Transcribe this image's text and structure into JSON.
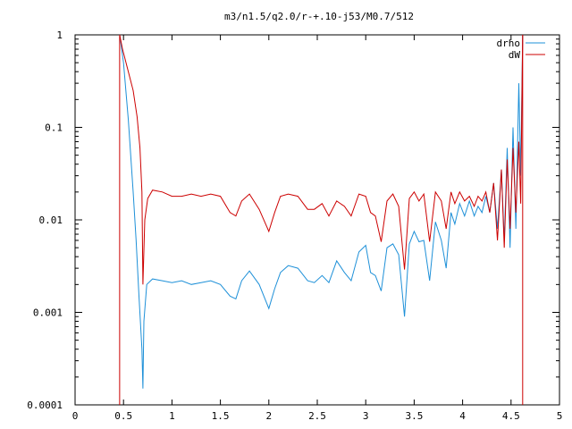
{
  "chart_data": {
    "type": "line",
    "title": "m3/n1.5/q2.0/r-+.10-j53/M0.7/512",
    "xlabel": "",
    "ylabel": "",
    "xlim": [
      0,
      5
    ],
    "ylim": [
      0.0001,
      1
    ],
    "yscale": "log",
    "grid": false,
    "legend_position": "top-right",
    "x_ticks": [
      0,
      0.5,
      1,
      1.5,
      2,
      2.5,
      3,
      3.5,
      4,
      4.5,
      5
    ],
    "x_tick_labels": [
      "0",
      "0.5",
      "1",
      "1.5",
      "2",
      "2.5",
      "3",
      "3.5",
      "4",
      "4.5",
      "5"
    ],
    "y_ticks": [
      0.0001,
      0.001,
      0.01,
      0.1,
      1
    ],
    "y_tick_labels": [
      "0.0001",
      "0.001",
      "0.01",
      "0.1",
      "1"
    ],
    "series": [
      {
        "name": "drho",
        "color": "#1e90d8",
        "x": [
          0.46,
          0.5,
          0.55,
          0.6,
          0.63,
          0.66,
          0.69,
          0.7,
          0.71,
          0.74,
          0.8,
          0.9,
          1.0,
          1.1,
          1.2,
          1.3,
          1.4,
          1.5,
          1.6,
          1.66,
          1.72,
          1.8,
          1.9,
          2.0,
          2.06,
          2.12,
          2.2,
          2.3,
          2.4,
          2.47,
          2.55,
          2.62,
          2.7,
          2.78,
          2.85,
          2.93,
          3.0,
          3.05,
          3.1,
          3.16,
          3.22,
          3.28,
          3.34,
          3.4,
          3.45,
          3.5,
          3.55,
          3.6,
          3.66,
          3.72,
          3.78,
          3.83,
          3.88,
          3.92,
          3.97,
          4.02,
          4.07,
          4.12,
          4.16,
          4.2,
          4.24,
          4.28,
          4.32,
          4.36,
          4.4,
          4.43,
          4.46,
          4.49,
          4.52,
          4.55,
          4.58,
          4.6,
          4.62
        ],
        "y": [
          1,
          0.5,
          0.12,
          0.02,
          0.006,
          0.0015,
          0.0004,
          0.00015,
          0.0008,
          0.002,
          0.0023,
          0.0022,
          0.0021,
          0.0022,
          0.002,
          0.0021,
          0.0022,
          0.002,
          0.0015,
          0.0014,
          0.0022,
          0.0028,
          0.002,
          0.0011,
          0.0018,
          0.0027,
          0.0032,
          0.003,
          0.0022,
          0.0021,
          0.0025,
          0.0021,
          0.0036,
          0.0027,
          0.0022,
          0.0045,
          0.0053,
          0.0027,
          0.0025,
          0.0017,
          0.005,
          0.0055,
          0.0042,
          0.0009,
          0.0055,
          0.0075,
          0.0058,
          0.006,
          0.0022,
          0.0095,
          0.006,
          0.003,
          0.012,
          0.009,
          0.015,
          0.011,
          0.016,
          0.011,
          0.014,
          0.012,
          0.018,
          0.012,
          0.025,
          0.008,
          0.035,
          0.006,
          0.06,
          0.005,
          0.1,
          0.008,
          0.3,
          0.03,
          1
        ]
      },
      {
        "name": "dW",
        "color": "#cc0000",
        "x": [
          0.46,
          0.49,
          0.55,
          0.6,
          0.64,
          0.67,
          0.69,
          0.7,
          0.72,
          0.75,
          0.8,
          0.9,
          1.0,
          1.1,
          1.2,
          1.3,
          1.4,
          1.5,
          1.6,
          1.66,
          1.72,
          1.8,
          1.9,
          2.0,
          2.06,
          2.12,
          2.2,
          2.3,
          2.4,
          2.47,
          2.55,
          2.62,
          2.7,
          2.78,
          2.85,
          2.93,
          3.0,
          3.05,
          3.1,
          3.16,
          3.22,
          3.28,
          3.34,
          3.4,
          3.45,
          3.5,
          3.55,
          3.6,
          3.66,
          3.72,
          3.78,
          3.83,
          3.88,
          3.92,
          3.97,
          4.02,
          4.07,
          4.12,
          4.16,
          4.2,
          4.24,
          4.28,
          4.32,
          4.36,
          4.4,
          4.43,
          4.46,
          4.49,
          4.52,
          4.55,
          4.58,
          4.6,
          4.62
        ],
        "y": [
          1,
          0.7,
          0.4,
          0.25,
          0.13,
          0.06,
          0.02,
          0.002,
          0.01,
          0.017,
          0.021,
          0.02,
          0.018,
          0.018,
          0.019,
          0.018,
          0.019,
          0.018,
          0.012,
          0.011,
          0.016,
          0.019,
          0.013,
          0.0075,
          0.012,
          0.018,
          0.019,
          0.018,
          0.013,
          0.013,
          0.015,
          0.011,
          0.016,
          0.014,
          0.011,
          0.019,
          0.018,
          0.012,
          0.011,
          0.0058,
          0.016,
          0.019,
          0.014,
          0.0029,
          0.017,
          0.02,
          0.016,
          0.019,
          0.0058,
          0.02,
          0.016,
          0.008,
          0.02,
          0.015,
          0.02,
          0.016,
          0.018,
          0.014,
          0.018,
          0.016,
          0.02,
          0.012,
          0.025,
          0.006,
          0.035,
          0.005,
          0.045,
          0.008,
          0.06,
          0.012,
          0.07,
          0.015,
          1
        ]
      }
    ],
    "vertical_lines": [
      {
        "x": 0.46,
        "color": "#cc0000"
      },
      {
        "x": 4.62,
        "color": "#cc0000"
      }
    ]
  }
}
